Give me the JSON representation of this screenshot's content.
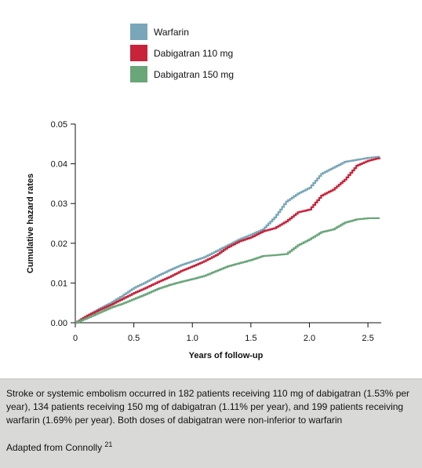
{
  "chart_data": {
    "type": "line",
    "xlabel": "Years of follow-up",
    "ylabel": "Cumulative hazard rates",
    "xlim": [
      0,
      2.6
    ],
    "ylim": [
      0,
      0.05
    ],
    "x_ticks": [
      "0",
      "0.5",
      "1.0",
      "1.5",
      "2.0",
      "2.5"
    ],
    "y_ticks": [
      "0.00",
      "0.01",
      "0.02",
      "0.03",
      "0.04",
      "0.05"
    ],
    "legend_position": "top-left",
    "grid": false,
    "series": [
      {
        "name": "Warfarin",
        "color": "#79a6b8",
        "points": [
          [
            0,
            0
          ],
          [
            0.1,
            0.0018
          ],
          [
            0.2,
            0.0035
          ],
          [
            0.3,
            0.005
          ],
          [
            0.4,
            0.0068
          ],
          [
            0.5,
            0.0088
          ],
          [
            0.6,
            0.0102
          ],
          [
            0.7,
            0.0118
          ],
          [
            0.8,
            0.0132
          ],
          [
            0.9,
            0.0145
          ],
          [
            1.0,
            0.0155
          ],
          [
            1.1,
            0.0165
          ],
          [
            1.2,
            0.018
          ],
          [
            1.3,
            0.0195
          ],
          [
            1.4,
            0.021
          ],
          [
            1.5,
            0.0222
          ],
          [
            1.6,
            0.0235
          ],
          [
            1.7,
            0.0265
          ],
          [
            1.8,
            0.0305
          ],
          [
            1.9,
            0.0325
          ],
          [
            2.0,
            0.034
          ],
          [
            2.1,
            0.0375
          ],
          [
            2.2,
            0.039
          ],
          [
            2.3,
            0.0405
          ],
          [
            2.4,
            0.041
          ],
          [
            2.5,
            0.0415
          ],
          [
            2.6,
            0.0418
          ]
        ]
      },
      {
        "name": "Dabigatran 110 mg",
        "color": "#c7233a",
        "points": [
          [
            0,
            0
          ],
          [
            0.1,
            0.0018
          ],
          [
            0.2,
            0.0032
          ],
          [
            0.3,
            0.0045
          ],
          [
            0.4,
            0.006
          ],
          [
            0.5,
            0.0075
          ],
          [
            0.6,
            0.0088
          ],
          [
            0.7,
            0.0102
          ],
          [
            0.8,
            0.0115
          ],
          [
            0.9,
            0.013
          ],
          [
            1.0,
            0.0142
          ],
          [
            1.1,
            0.0155
          ],
          [
            1.2,
            0.017
          ],
          [
            1.3,
            0.019
          ],
          [
            1.4,
            0.0205
          ],
          [
            1.5,
            0.0215
          ],
          [
            1.6,
            0.023
          ],
          [
            1.7,
            0.0238
          ],
          [
            1.8,
            0.0255
          ],
          [
            1.9,
            0.0278
          ],
          [
            2.0,
            0.0285
          ],
          [
            2.1,
            0.032
          ],
          [
            2.2,
            0.0335
          ],
          [
            2.3,
            0.036
          ],
          [
            2.4,
            0.0395
          ],
          [
            2.5,
            0.0408
          ],
          [
            2.6,
            0.0415
          ]
        ]
      },
      {
        "name": "Dabigatran 150 mg",
        "color": "#6aa67a",
        "points": [
          [
            0,
            0
          ],
          [
            0.1,
            0.0012
          ],
          [
            0.2,
            0.0025
          ],
          [
            0.3,
            0.0038
          ],
          [
            0.4,
            0.0048
          ],
          [
            0.5,
            0.006
          ],
          [
            0.6,
            0.0072
          ],
          [
            0.7,
            0.0085
          ],
          [
            0.8,
            0.0095
          ],
          [
            0.9,
            0.0103
          ],
          [
            1.0,
            0.011
          ],
          [
            1.1,
            0.0118
          ],
          [
            1.2,
            0.013
          ],
          [
            1.3,
            0.0142
          ],
          [
            1.4,
            0.015
          ],
          [
            1.5,
            0.0158
          ],
          [
            1.6,
            0.0168
          ],
          [
            1.7,
            0.017
          ],
          [
            1.8,
            0.0173
          ],
          [
            1.9,
            0.0195
          ],
          [
            2.0,
            0.021
          ],
          [
            2.1,
            0.0228
          ],
          [
            2.2,
            0.0235
          ],
          [
            2.3,
            0.0252
          ],
          [
            2.4,
            0.026
          ],
          [
            2.5,
            0.0263
          ],
          [
            2.6,
            0.0263
          ]
        ]
      }
    ]
  },
  "caption": {
    "text": "Stroke or systemic embolism occurred in 182 patients receiving 110 mg of dabigatran (1.53% per year), 134 patients receiving 150 mg of dabigatran (1.11% per year), and 199 patients receiving warfarin (1.69% per year). Both doses of dabigatran were non-inferior to warfarin",
    "source": "Adapted from Connolly",
    "source_ref": "21"
  }
}
